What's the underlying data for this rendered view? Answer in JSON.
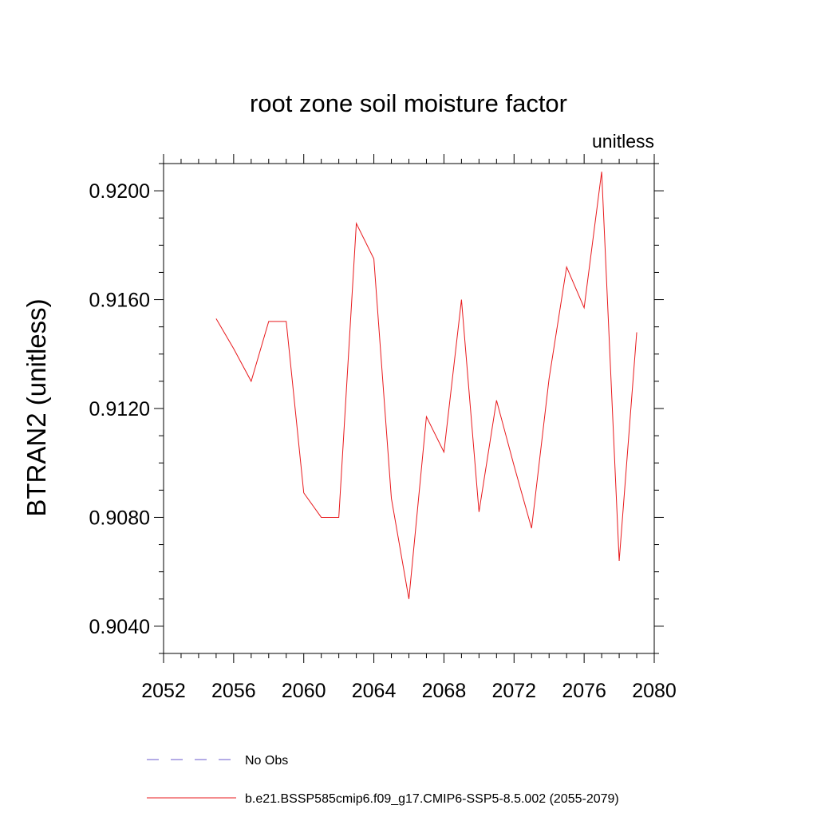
{
  "chart_data": {
    "type": "line",
    "title": "root zone soil moisture factor",
    "units_label": "unitless",
    "ylabel": "BTRAN2  (unitless)",
    "xlabel": "",
    "xlim": [
      2052,
      2080
    ],
    "ylim": [
      0.903,
      0.921
    ],
    "x_ticks": [
      2052,
      2056,
      2060,
      2064,
      2068,
      2072,
      2076,
      2080
    ],
    "x_tick_labels": [
      "2052",
      "2056",
      "2060",
      "2064",
      "2068",
      "2072",
      "2076",
      "2080"
    ],
    "y_ticks": [
      0.904,
      0.908,
      0.912,
      0.916,
      0.92
    ],
    "y_tick_labels": [
      "0.9040",
      "0.9080",
      "0.9120",
      "0.9160",
      "0.9200"
    ],
    "grid": false,
    "legend_position": "bottom",
    "series": [
      {
        "name": "No Obs",
        "color": "#6a5acd",
        "dash": "dashed",
        "x": [],
        "values": []
      },
      {
        "name": "b.e21.BSSP585cmip6.f09_g17.CMIP6-SSP5-8.5.002 (2055-2079)",
        "color": "#e8191c",
        "dash": "solid",
        "x": [
          2055,
          2056,
          2057,
          2058,
          2059,
          2060,
          2061,
          2062,
          2063,
          2064,
          2065,
          2066,
          2067,
          2068,
          2069,
          2070,
          2071,
          2072,
          2073,
          2074,
          2075,
          2076,
          2077,
          2078,
          2079
        ],
        "values": [
          0.9153,
          0.9142,
          0.913,
          0.9152,
          0.9152,
          0.9089,
          0.908,
          0.908,
          0.9188,
          0.9175,
          0.9087,
          0.905,
          0.9117,
          0.9104,
          0.916,
          0.9082,
          0.9123,
          0.9099,
          0.9076,
          0.9131,
          0.9172,
          0.9157,
          0.9207,
          0.9064,
          0.9148
        ]
      }
    ]
  }
}
